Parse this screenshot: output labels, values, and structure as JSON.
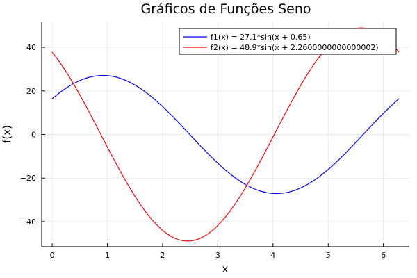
{
  "chart_data": {
    "type": "line",
    "title": "Gráficos de Funções Seno",
    "xlabel": "x",
    "ylabel": "f(x)",
    "xlim": [
      -0.19,
      6.47
    ],
    "ylim": [
      -51.5,
      51.5
    ],
    "xticks": [
      0,
      1,
      2,
      3,
      4,
      5,
      6
    ],
    "xtick_labels": [
      "0",
      "1",
      "2",
      "3",
      "4",
      "5",
      "6"
    ],
    "yticks": [
      -40,
      -20,
      0,
      20,
      40
    ],
    "ytick_labels": [
      "−40",
      "−20",
      "0",
      "20",
      "40"
    ],
    "grid": true,
    "legend_position": "top-right",
    "x_range": [
      0,
      6.2832
    ],
    "series": [
      {
        "name": "f1(x) = 27.1*sin(x + 0.65)",
        "amplitude": 27.1,
        "phase": 0.65,
        "color": "#0000ff"
      },
      {
        "name": "f2(x) = 48.9*sin(x + 2.2600000000000002)",
        "amplitude": 48.9,
        "phase": 2.2600000000000002,
        "color": "#ff0000"
      }
    ]
  }
}
